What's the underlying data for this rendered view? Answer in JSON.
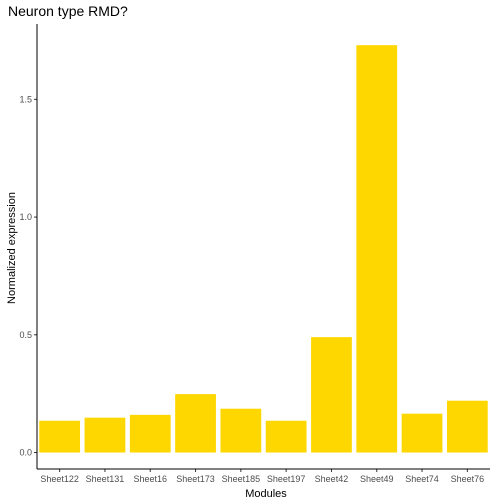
{
  "chart_data": {
    "type": "bar",
    "title": "Neuron type RMD?",
    "xlabel": "Modules",
    "ylabel": "Normalized expression",
    "categories": [
      "Sheet122",
      "Sheet131",
      "Sheet16",
      "Sheet173",
      "Sheet185",
      "Sheet197",
      "Sheet42",
      "Sheet49",
      "Sheet74",
      "Sheet76"
    ],
    "values": [
      0.135,
      0.148,
      0.16,
      0.248,
      0.186,
      0.135,
      0.49,
      1.73,
      0.165,
      0.22
    ],
    "yticks": [
      0.0,
      0.5,
      1.0,
      1.5
    ],
    "ytick_labels": [
      "0.0",
      "0.5",
      "1.0",
      "1.5"
    ],
    "ylim": [
      -0.07,
      1.82
    ],
    "bar_color": "#FFD700",
    "grid": false,
    "legend": "none"
  }
}
